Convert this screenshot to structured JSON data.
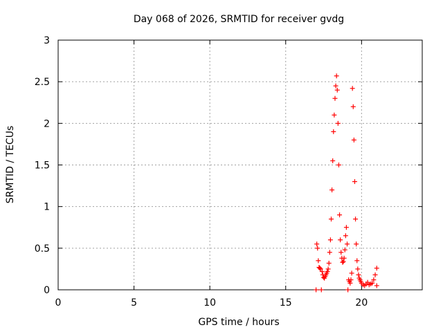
{
  "chart_data": {
    "type": "scatter",
    "title": "Day 068 of 2026, SRMTID for receiver gvdg",
    "xlabel": "GPS time / hours",
    "ylabel": "SRMTID / TECUs",
    "xlim": [
      0,
      24
    ],
    "ylim": [
      0,
      3
    ],
    "xticks": [
      0,
      5,
      10,
      15,
      20
    ],
    "yticks": [
      0,
      0.5,
      1,
      1.5,
      2,
      2.5,
      3
    ],
    "xtick_labels": [
      "0",
      "5",
      "10",
      "15",
      "20"
    ],
    "ytick_labels": [
      "0",
      "0.5",
      "1",
      "1.5",
      "2",
      "2.5",
      "3"
    ],
    "grid": true,
    "marker": "plus",
    "color": "#ff0000",
    "series": [
      {
        "name": "SRMTID",
        "points": [
          [
            17.0,
            0.0
          ],
          [
            17.05,
            0.55
          ],
          [
            17.1,
            0.5
          ],
          [
            17.15,
            0.35
          ],
          [
            17.2,
            0.27
          ],
          [
            17.25,
            0.26
          ],
          [
            17.3,
            0.25
          ],
          [
            17.35,
            0.0
          ],
          [
            17.4,
            0.22
          ],
          [
            17.45,
            0.18
          ],
          [
            17.5,
            0.15
          ],
          [
            17.55,
            0.14
          ],
          [
            17.6,
            0.16
          ],
          [
            17.65,
            0.18
          ],
          [
            17.7,
            0.2
          ],
          [
            17.75,
            0.22
          ],
          [
            17.8,
            0.25
          ],
          [
            17.85,
            0.32
          ],
          [
            17.9,
            0.45
          ],
          [
            17.95,
            0.6
          ],
          [
            18.0,
            0.85
          ],
          [
            18.05,
            1.2
          ],
          [
            18.1,
            1.55
          ],
          [
            18.15,
            1.9
          ],
          [
            18.2,
            2.1
          ],
          [
            18.25,
            2.3
          ],
          [
            18.3,
            2.45
          ],
          [
            18.35,
            2.57
          ],
          [
            18.4,
            2.4
          ],
          [
            18.45,
            2.0
          ],
          [
            18.5,
            1.5
          ],
          [
            18.55,
            0.9
          ],
          [
            18.6,
            0.6
          ],
          [
            18.65,
            0.45
          ],
          [
            18.7,
            0.38
          ],
          [
            18.75,
            0.33
          ],
          [
            18.8,
            0.34
          ],
          [
            18.85,
            0.38
          ],
          [
            18.9,
            0.48
          ],
          [
            18.95,
            0.65
          ],
          [
            19.0,
            0.75
          ],
          [
            19.05,
            0.55
          ],
          [
            19.1,
            0.0
          ],
          [
            19.15,
            0.12
          ],
          [
            19.2,
            0.1
          ],
          [
            19.25,
            0.08
          ],
          [
            19.3,
            0.12
          ],
          [
            19.35,
            0.2
          ],
          [
            19.4,
            2.42
          ],
          [
            19.45,
            2.2
          ],
          [
            19.5,
            1.8
          ],
          [
            19.55,
            1.3
          ],
          [
            19.6,
            0.85
          ],
          [
            19.65,
            0.55
          ],
          [
            19.7,
            0.35
          ],
          [
            19.75,
            0.25
          ],
          [
            19.8,
            0.18
          ],
          [
            19.85,
            0.14
          ],
          [
            19.9,
            0.12
          ],
          [
            19.95,
            0.1
          ],
          [
            20.0,
            0.08
          ],
          [
            20.1,
            0.06
          ],
          [
            20.2,
            0.05
          ],
          [
            20.3,
            0.07
          ],
          [
            20.4,
            0.09
          ],
          [
            20.5,
            0.06
          ],
          [
            20.6,
            0.07
          ],
          [
            20.7,
            0.08
          ],
          [
            20.8,
            0.12
          ],
          [
            20.9,
            0.18
          ],
          [
            21.0,
            0.26
          ],
          [
            21.0,
            0.05
          ]
        ]
      }
    ]
  }
}
